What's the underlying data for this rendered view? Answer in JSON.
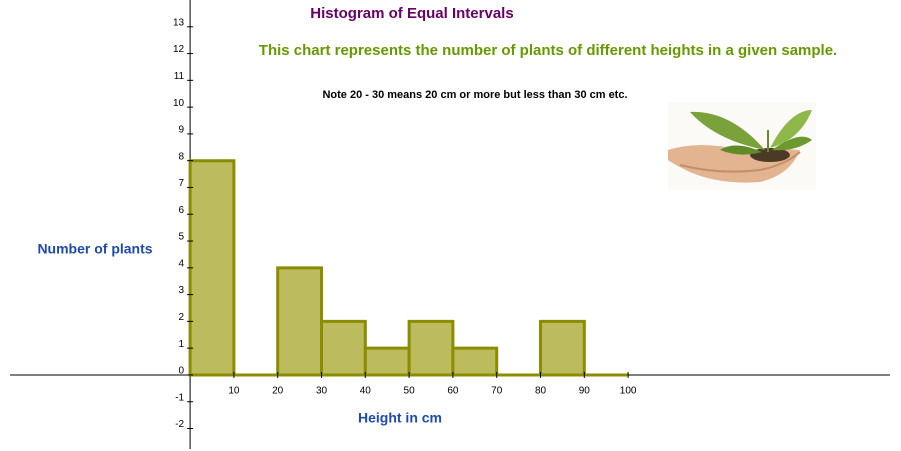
{
  "chart_data": {
    "type": "histogram",
    "title": "Histogram of Equal Intervals",
    "subtitle": "This chart represents the number of plants of different heights in a given sample.",
    "annotation": "Note 20 - 30 means 20 cm or more but less than 30 cm  etc.",
    "x_label": "Height in cm",
    "y_label": "Number of plants",
    "bins": [
      0,
      10,
      20,
      30,
      40,
      50,
      60,
      70,
      80,
      90,
      100
    ],
    "values": [
      8,
      0,
      4,
      2,
      1,
      2,
      1,
      0,
      2,
      0
    ],
    "color": "#bcbc5e",
    "edge_color": "#8c8c00",
    "xlim": [
      -43.4,
      162.3
    ],
    "ylim": [
      -2.84,
      14
    ],
    "xticks": [
      10,
      20,
      30,
      40,
      50,
      60,
      70,
      80,
      90,
      100
    ],
    "yticks": [
      -2,
      -1,
      0,
      1,
      2,
      3,
      4,
      5,
      6,
      7,
      8,
      9,
      10,
      11,
      12,
      13
    ]
  }
}
